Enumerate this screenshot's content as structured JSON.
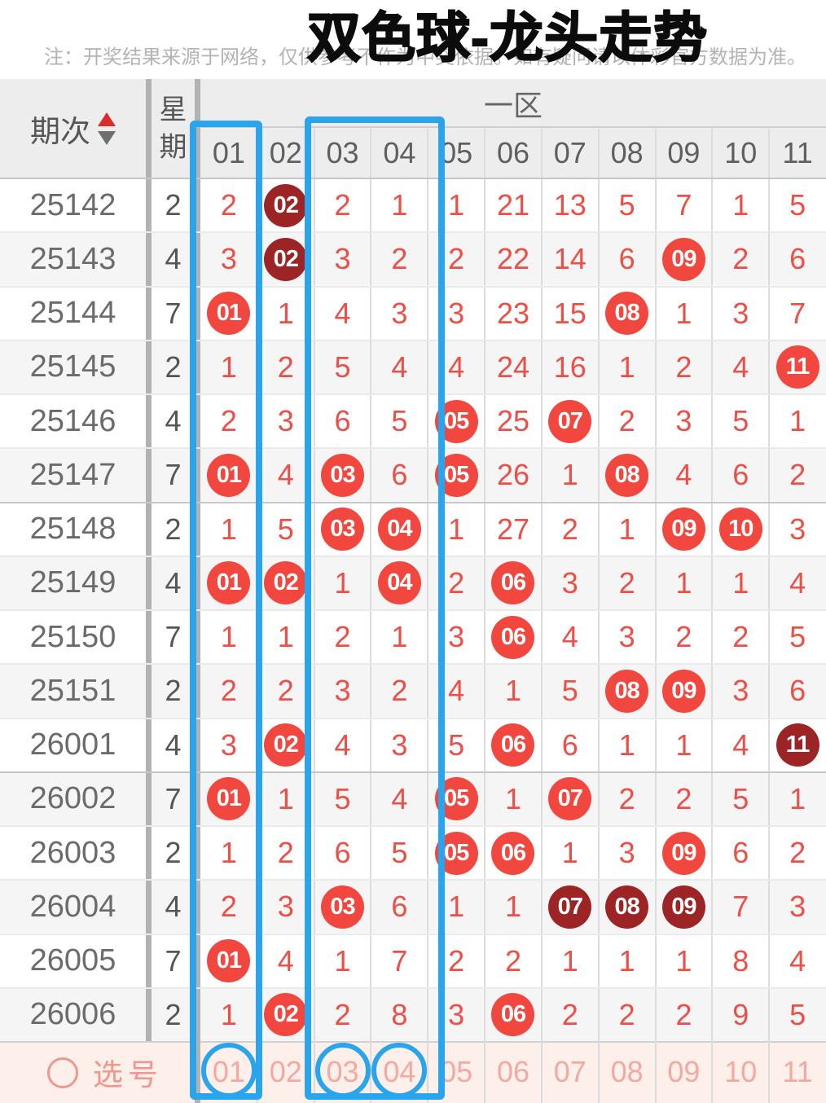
{
  "title": "双色球-龙头走势",
  "note": "注：开奖结果来源于网络，仅供参考不作为中奖依据。如有疑问请以体彩官方数据为准。",
  "header": {
    "period_label": "期次",
    "weekday_label": "星期",
    "zone_label": "一区",
    "columns": [
      "01",
      "02",
      "03",
      "04",
      "05",
      "06",
      "07",
      "08",
      "09",
      "10",
      "11"
    ]
  },
  "footer": {
    "select_label": "选号",
    "numbers": [
      "01",
      "02",
      "03",
      "04",
      "05",
      "06",
      "07",
      "08",
      "09",
      "10",
      "11"
    ],
    "circled": [
      "01",
      "03",
      "04"
    ]
  },
  "highlight": {
    "boxed_columns": [
      "01",
      "03",
      "04"
    ],
    "annotation_color": "#2aa4ea"
  },
  "colors": {
    "ball_red": "#f2473f",
    "ball_dark_red": "#9c2424",
    "miss_number_red": "#ed4f47",
    "select_row_bg": "#fdf0ea",
    "select_text": "#f2958c",
    "header_bg": "#ededed",
    "sort_arrow_up": "#dd2a2a"
  },
  "rows": [
    {
      "period": "25142",
      "weekday": "2",
      "cells": [
        {
          "v": "2"
        },
        {
          "v": "02",
          "b": "d"
        },
        {
          "v": "2"
        },
        {
          "v": "1"
        },
        {
          "v": "1"
        },
        {
          "v": "21"
        },
        {
          "v": "13"
        },
        {
          "v": "5"
        },
        {
          "v": "7"
        },
        {
          "v": "1"
        },
        {
          "v": "5"
        }
      ]
    },
    {
      "period": "25143",
      "weekday": "4",
      "cells": [
        {
          "v": "3"
        },
        {
          "v": "02",
          "b": "d"
        },
        {
          "v": "3"
        },
        {
          "v": "2"
        },
        {
          "v": "2"
        },
        {
          "v": "22"
        },
        {
          "v": "14"
        },
        {
          "v": "6"
        },
        {
          "v": "09",
          "b": "r"
        },
        {
          "v": "2"
        },
        {
          "v": "6"
        }
      ]
    },
    {
      "period": "25144",
      "weekday": "7",
      "cells": [
        {
          "v": "01",
          "b": "r"
        },
        {
          "v": "1"
        },
        {
          "v": "4"
        },
        {
          "v": "3"
        },
        {
          "v": "3"
        },
        {
          "v": "23"
        },
        {
          "v": "15"
        },
        {
          "v": "08",
          "b": "r"
        },
        {
          "v": "1"
        },
        {
          "v": "3"
        },
        {
          "v": "7"
        }
      ]
    },
    {
      "period": "25145",
      "weekday": "2",
      "cells": [
        {
          "v": "1"
        },
        {
          "v": "2"
        },
        {
          "v": "5"
        },
        {
          "v": "4"
        },
        {
          "v": "4"
        },
        {
          "v": "24"
        },
        {
          "v": "16"
        },
        {
          "v": "1"
        },
        {
          "v": "2"
        },
        {
          "v": "4"
        },
        {
          "v": "11",
          "b": "r"
        }
      ]
    },
    {
      "period": "25146",
      "weekday": "4",
      "cells": [
        {
          "v": "2"
        },
        {
          "v": "3"
        },
        {
          "v": "6"
        },
        {
          "v": "5"
        },
        {
          "v": "05",
          "b": "r"
        },
        {
          "v": "25"
        },
        {
          "v": "07",
          "b": "r"
        },
        {
          "v": "2"
        },
        {
          "v": "3"
        },
        {
          "v": "5"
        },
        {
          "v": "1"
        }
      ]
    },
    {
      "period": "25147",
      "weekday": "7",
      "cells": [
        {
          "v": "01",
          "b": "r"
        },
        {
          "v": "4"
        },
        {
          "v": "03",
          "b": "r"
        },
        {
          "v": "6"
        },
        {
          "v": "05",
          "b": "r"
        },
        {
          "v": "26"
        },
        {
          "v": "1"
        },
        {
          "v": "08",
          "b": "r"
        },
        {
          "v": "4"
        },
        {
          "v": "6"
        },
        {
          "v": "2"
        }
      ]
    },
    {
      "period": "25148",
      "weekday": "2",
      "cells": [
        {
          "v": "1"
        },
        {
          "v": "5"
        },
        {
          "v": "03",
          "b": "r"
        },
        {
          "v": "04",
          "b": "r"
        },
        {
          "v": "1"
        },
        {
          "v": "27"
        },
        {
          "v": "2"
        },
        {
          "v": "1"
        },
        {
          "v": "09",
          "b": "r"
        },
        {
          "v": "10",
          "b": "r"
        },
        {
          "v": "3"
        }
      ]
    },
    {
      "period": "25149",
      "weekday": "4",
      "cells": [
        {
          "v": "01",
          "b": "r"
        },
        {
          "v": "02",
          "b": "r"
        },
        {
          "v": "1"
        },
        {
          "v": "04",
          "b": "r"
        },
        {
          "v": "2"
        },
        {
          "v": "06",
          "b": "r"
        },
        {
          "v": "3"
        },
        {
          "v": "2"
        },
        {
          "v": "1"
        },
        {
          "v": "1"
        },
        {
          "v": "4"
        }
      ]
    },
    {
      "period": "25150",
      "weekday": "7",
      "cells": [
        {
          "v": "1"
        },
        {
          "v": "1"
        },
        {
          "v": "2"
        },
        {
          "v": "1"
        },
        {
          "v": "3"
        },
        {
          "v": "06",
          "b": "r"
        },
        {
          "v": "4"
        },
        {
          "v": "3"
        },
        {
          "v": "2"
        },
        {
          "v": "2"
        },
        {
          "v": "5"
        }
      ]
    },
    {
      "period": "25151",
      "weekday": "2",
      "cells": [
        {
          "v": "2"
        },
        {
          "v": "2"
        },
        {
          "v": "3"
        },
        {
          "v": "2"
        },
        {
          "v": "4"
        },
        {
          "v": "1"
        },
        {
          "v": "5"
        },
        {
          "v": "08",
          "b": "r"
        },
        {
          "v": "09",
          "b": "r"
        },
        {
          "v": "3"
        },
        {
          "v": "6"
        }
      ]
    },
    {
      "period": "26001",
      "weekday": "4",
      "cells": [
        {
          "v": "3"
        },
        {
          "v": "02",
          "b": "r"
        },
        {
          "v": "4"
        },
        {
          "v": "3"
        },
        {
          "v": "5"
        },
        {
          "v": "06",
          "b": "r"
        },
        {
          "v": "6"
        },
        {
          "v": "1"
        },
        {
          "v": "1"
        },
        {
          "v": "4"
        },
        {
          "v": "11",
          "b": "d"
        }
      ]
    },
    {
      "period": "26002",
      "weekday": "7",
      "cells": [
        {
          "v": "01",
          "b": "r"
        },
        {
          "v": "1"
        },
        {
          "v": "5"
        },
        {
          "v": "4"
        },
        {
          "v": "05",
          "b": "r"
        },
        {
          "v": "1"
        },
        {
          "v": "07",
          "b": "r"
        },
        {
          "v": "2"
        },
        {
          "v": "2"
        },
        {
          "v": "5"
        },
        {
          "v": "1"
        }
      ]
    },
    {
      "period": "26003",
      "weekday": "2",
      "cells": [
        {
          "v": "1"
        },
        {
          "v": "2"
        },
        {
          "v": "6"
        },
        {
          "v": "5"
        },
        {
          "v": "05",
          "b": "r"
        },
        {
          "v": "06",
          "b": "r"
        },
        {
          "v": "1"
        },
        {
          "v": "3"
        },
        {
          "v": "09",
          "b": "r"
        },
        {
          "v": "6"
        },
        {
          "v": "2"
        }
      ]
    },
    {
      "period": "26004",
      "weekday": "4",
      "cells": [
        {
          "v": "2"
        },
        {
          "v": "3"
        },
        {
          "v": "03",
          "b": "r"
        },
        {
          "v": "6"
        },
        {
          "v": "1"
        },
        {
          "v": "1"
        },
        {
          "v": "07",
          "b": "d"
        },
        {
          "v": "08",
          "b": "d"
        },
        {
          "v": "09",
          "b": "d"
        },
        {
          "v": "7"
        },
        {
          "v": "3"
        }
      ]
    },
    {
      "period": "26005",
      "weekday": "7",
      "cells": [
        {
          "v": "01",
          "b": "r"
        },
        {
          "v": "4"
        },
        {
          "v": "1"
        },
        {
          "v": "7"
        },
        {
          "v": "2"
        },
        {
          "v": "2"
        },
        {
          "v": "1"
        },
        {
          "v": "1"
        },
        {
          "v": "1"
        },
        {
          "v": "8"
        },
        {
          "v": "4"
        }
      ]
    },
    {
      "period": "26006",
      "weekday": "2",
      "cells": [
        {
          "v": "1"
        },
        {
          "v": "02",
          "b": "r"
        },
        {
          "v": "2"
        },
        {
          "v": "8"
        },
        {
          "v": "3"
        },
        {
          "v": "06",
          "b": "r"
        },
        {
          "v": "2"
        },
        {
          "v": "2"
        },
        {
          "v": "2"
        },
        {
          "v": "9"
        },
        {
          "v": "5"
        }
      ]
    }
  ]
}
